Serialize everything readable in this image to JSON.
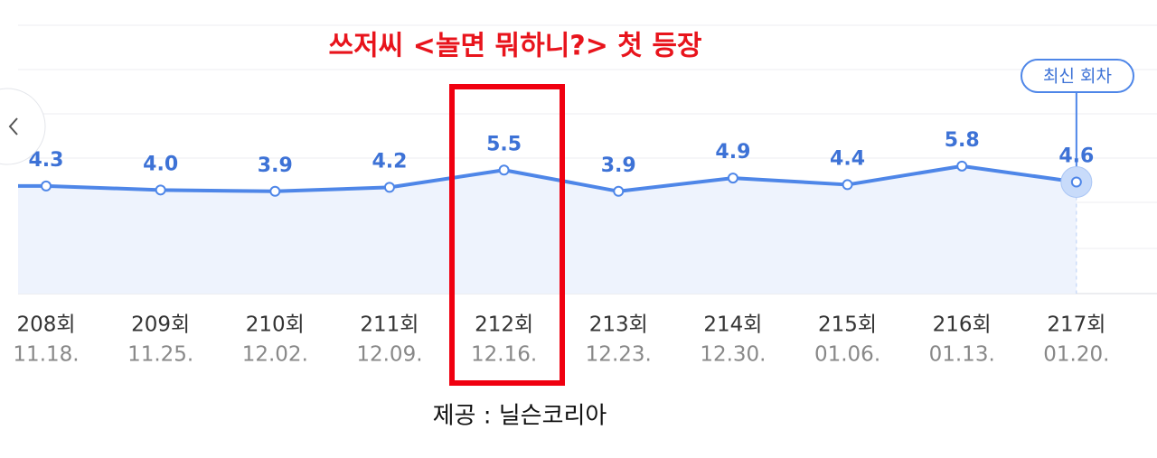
{
  "chart_data": {
    "type": "line",
    "annotation": "쓰저씨 <놀면 뭐하니?> 첫 등장",
    "categories": [
      "208회",
      "209회",
      "210회",
      "211회",
      "212회",
      "213회",
      "214회",
      "215회",
      "216회",
      "217회"
    ],
    "dates": [
      "11.18.",
      "11.25.",
      "12.02.",
      "12.09.",
      "12.16.",
      "12.23.",
      "12.30.",
      "01.06.",
      "01.13.",
      "01.20."
    ],
    "values": [
      4.3,
      4.0,
      3.9,
      4.2,
      5.5,
      3.9,
      4.9,
      4.4,
      5.8,
      4.6
    ],
    "value_labels": [
      "4.3",
      "4.0",
      "3.9",
      "4.2",
      "5.5",
      "3.9",
      "4.9",
      "4.4",
      "5.8",
      "4.6"
    ],
    "color": "#4e86e8",
    "ylim": [
      -3.8,
      16.4
    ],
    "badge": "최신 회차",
    "source": "제공 : 닐슨코리아"
  }
}
